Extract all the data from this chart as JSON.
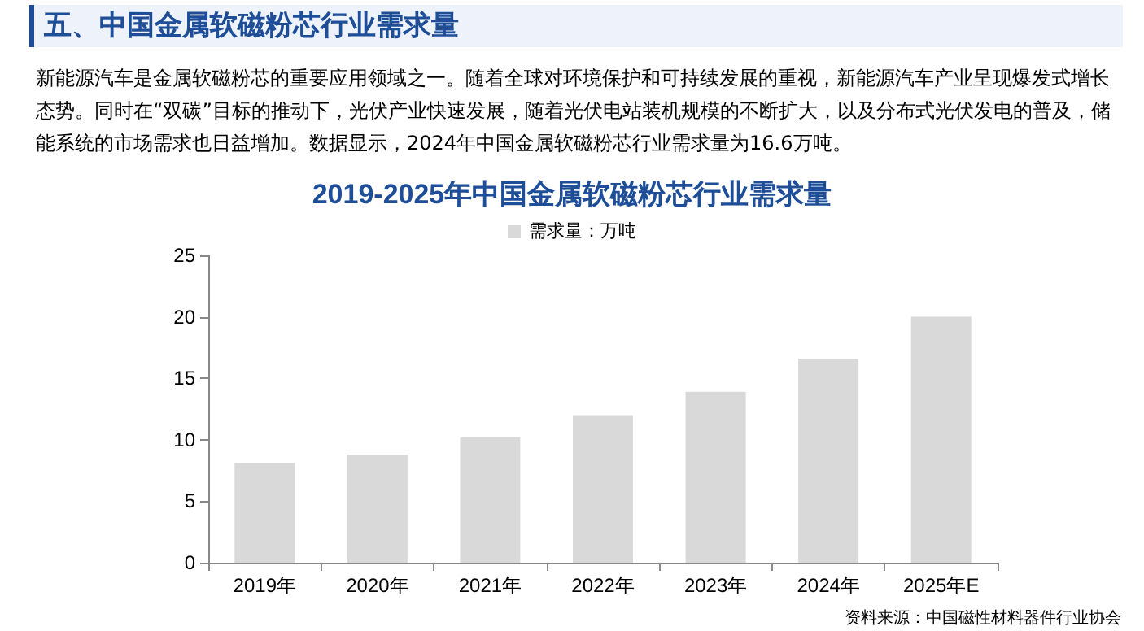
{
  "chart_data": {
    "type": "bar",
    "title": "2019-2025年中国金属软磁粉芯行业需求量",
    "annotations": [
      "五、中国金属软磁粉芯行业需求量",
      "新能源汽车是金属软磁粉芯的重要应用领域之一。随着全球对环境保护和可持续发展的重视，新能源汽车产业呈现爆发式增长态势。同时在“双碳”目标的推动下，光伏产业快速发展，随着光伏电站装机规模的不断扩大，以及分布式光伏发电的普及，储能系统的市场需求也日益增加。数据显示，2024年中国金属软磁粉芯行业需求量为16.6万吨。",
      "资料来源：中国磁性材料器件行业协会"
    ],
    "categories": [
      "2019年",
      "2020年",
      "2021年",
      "2022年",
      "2023年",
      "2024年",
      "2025年E"
    ],
    "series": [
      {
        "name": "需求量：万吨",
        "color": "#d9d9d9",
        "values": [
          8.1,
          8.8,
          10.2,
          12.0,
          13.9,
          16.6,
          20.0
        ]
      }
    ],
    "ylim": [
      0,
      25
    ],
    "yticks": [
      0,
      5,
      10,
      15,
      20,
      25
    ],
    "grid": false,
    "legend": "top"
  }
}
